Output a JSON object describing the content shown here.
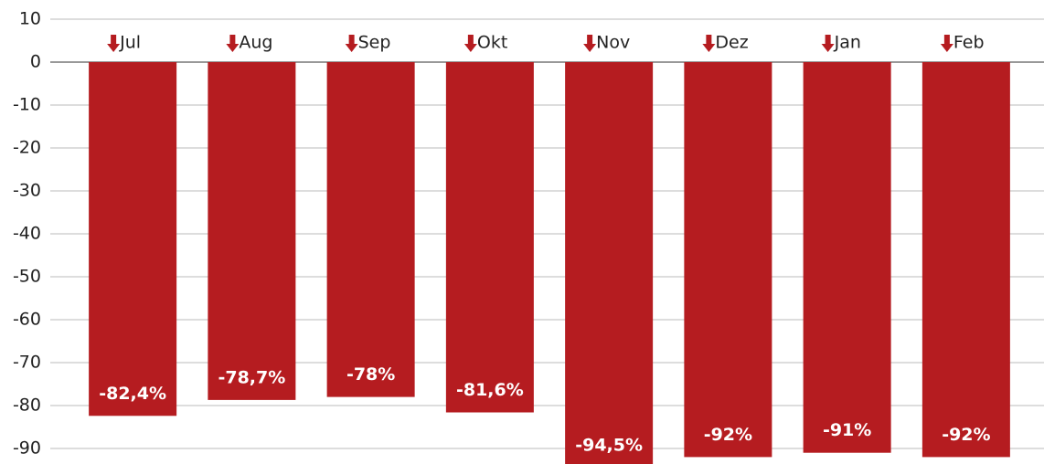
{
  "chart_data": {
    "type": "bar",
    "categories": [
      "Jul",
      "Aug",
      "Sep",
      "Okt",
      "Nov",
      "Dez",
      "Jan",
      "Feb"
    ],
    "values": [
      -82.4,
      -78.7,
      -78,
      -81.6,
      -94.5,
      -92,
      -91,
      -92
    ],
    "value_labels": [
      "-82,4%",
      "-78,7%",
      "-78%",
      "-81,6%",
      "-94,5%",
      "-92%",
      "-91%",
      "-92%"
    ],
    "color": "#b51c20",
    "ylim": [
      -95,
      10
    ],
    "yticks": [
      10,
      0,
      -10,
      -20,
      -30,
      -40,
      -50,
      -60,
      -70,
      -80,
      -90
    ],
    "grid": true
  }
}
